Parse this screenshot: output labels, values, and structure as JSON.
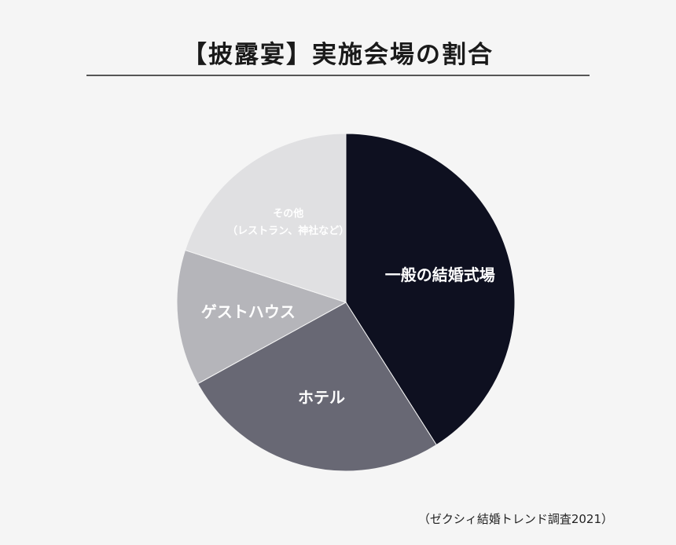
{
  "chart_data": {
    "type": "pie",
    "title": "【披露宴】実施会場の割合",
    "source": "（ゼクシィ結婚トレンド調査2021）",
    "categories": [
      "一般の結婚式場",
      "ホテル",
      "ゲストハウス",
      "その他\n（レストラン、神社など）"
    ],
    "values": [
      41,
      26,
      13,
      20
    ],
    "colors": [
      "#0e1020",
      "#686874",
      "#b5b5ba",
      "#e0e0e2"
    ]
  }
}
